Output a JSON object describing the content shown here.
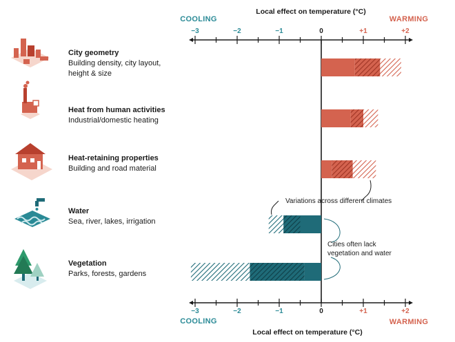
{
  "chart_data": {
    "type": "bar",
    "orientation": "horizontal",
    "title": "Local effect on temperature (°C)",
    "xlabel": "Local effect on temperature (°C)",
    "xlim": [
      -3.1,
      2.2
    ],
    "ticks": [
      -3,
      -2,
      -1,
      0,
      1,
      2
    ],
    "tick_labels": [
      "−3",
      "−2",
      "−1",
      "0",
      "+1",
      "+2"
    ],
    "cooling_label": "COOLING",
    "warming_label": "WARMING",
    "colors": {
      "warming_solid": "#d4634f",
      "warming_dark": "#b8402e",
      "warming_light": "#ffffff",
      "cooling_solid": "#1f6b78",
      "cooling_dark": "#15535e",
      "cooling_light": "#ffffff",
      "warming_text": "#d4634f",
      "cooling_text": "#2a8a96"
    },
    "categories": [
      {
        "title": "City geometry",
        "subtitle_lines": [
          "Building density, city layout,",
          "height & size"
        ],
        "icon": "city-blocks-icon",
        "direction": "warming",
        "segments": [
          0,
          0.8,
          1.4,
          1.9
        ]
      },
      {
        "title": "Heat from human activities",
        "subtitle_lines": [
          "Industrial/domestic heating"
        ],
        "icon": "factory-icon",
        "direction": "warming",
        "segments": [
          0,
          0.7,
          1.0,
          1.35
        ]
      },
      {
        "title": "Heat-retaining properties",
        "subtitle_lines": [
          "Building and road material"
        ],
        "icon": "house-icon",
        "direction": "warming",
        "segments": [
          0,
          0.25,
          0.75,
          1.3
        ]
      },
      {
        "title": "Water",
        "subtitle_lines": [
          "Sea, river, lakes, irrigation"
        ],
        "icon": "water-tap-icon",
        "direction": "cooling",
        "segments": [
          0,
          -0.5,
          -0.9,
          -1.25
        ]
      },
      {
        "title": "Vegetation",
        "subtitle_lines": [
          "Parks, forests, gardens"
        ],
        "icon": "tree-icon",
        "direction": "cooling",
        "segments": [
          0,
          -0.4,
          -1.7,
          -3.1
        ]
      }
    ],
    "annotations": [
      {
        "lines": [
          "Variations across different climates"
        ]
      },
      {
        "lines": [
          "Cities often lack",
          "vegetation and water"
        ]
      }
    ]
  }
}
